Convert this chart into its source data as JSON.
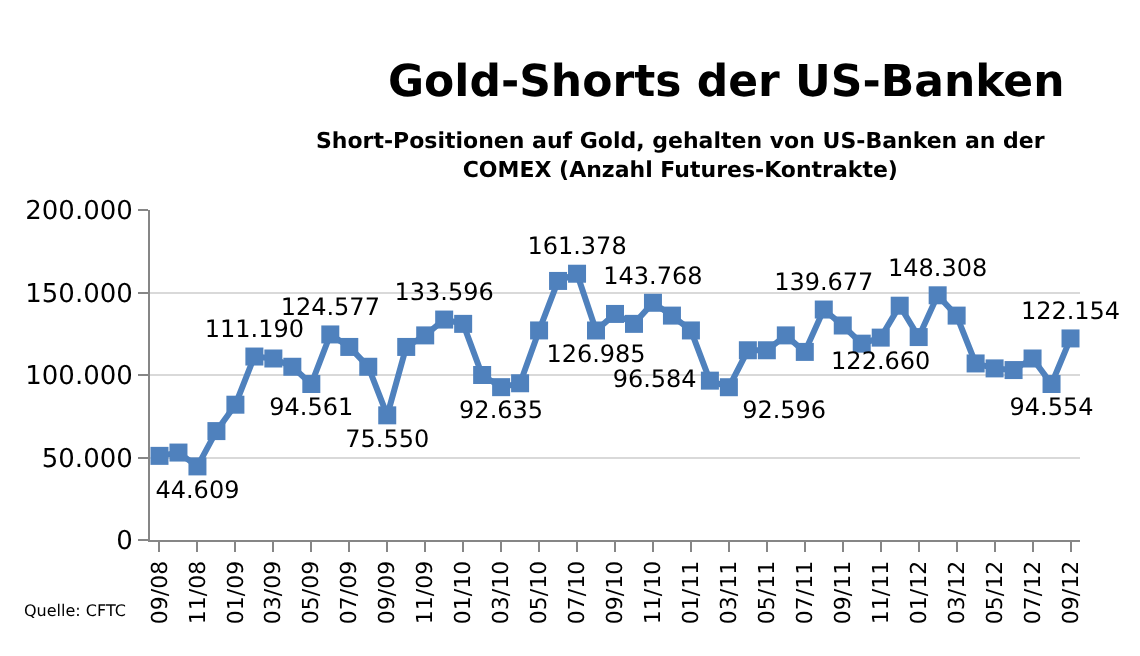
{
  "chart_data": {
    "type": "line",
    "title": "Gold-Shorts der US-Banken",
    "subtitle": "Short-Positionen auf Gold, gehalten von US-Banken an der\nCOMEX (Anzahl Futures-Kontrakte)",
    "categories": [
      "09/08",
      null,
      "11/08",
      null,
      "01/09",
      null,
      "03/09",
      null,
      "05/09",
      null,
      "07/09",
      null,
      "09/09",
      null,
      "11/09",
      null,
      "01/10",
      null,
      "03/10",
      null,
      "05/10",
      null,
      "07/10",
      null,
      "09/10",
      null,
      "11/10",
      null,
      "01/11",
      null,
      "03/11",
      null,
      "05/11",
      null,
      "07/11",
      null,
      "09/11",
      null,
      "11/11",
      null,
      "01/12",
      null,
      "03/12",
      null,
      "05/12",
      null,
      "07/12",
      null,
      "09/12"
    ],
    "series": [
      {
        "color": "#4f81bd",
        "values": [
          51000,
          53000,
          44609,
          66000,
          82000,
          111190,
          110000,
          105000,
          94561,
          124577,
          117000,
          105000,
          75550,
          117000,
          124000,
          133596,
          131000,
          100000,
          92635,
          95000,
          127000,
          157000,
          161378,
          126985,
          137000,
          131000,
          143768,
          136000,
          127000,
          96584,
          92596,
          115000,
          115000,
          124000,
          114000,
          139677,
          130000,
          119000,
          122660,
          142000,
          123000,
          148308,
          136000,
          107000,
          104000,
          103000,
          110000,
          94554,
          122154
        ],
        "value_labels": [
          null,
          null,
          "44.609",
          null,
          null,
          "111.190",
          null,
          null,
          "94.561",
          "124.577",
          null,
          null,
          "75.550",
          null,
          null,
          "133.596",
          null,
          null,
          "92.635",
          null,
          null,
          null,
          "161.378",
          "126.985",
          null,
          null,
          "143.768",
          null,
          null,
          "96.584",
          "92.596",
          null,
          null,
          null,
          null,
          "139.677",
          null,
          null,
          "122.660",
          null,
          null,
          "148.308",
          null,
          null,
          null,
          null,
          null,
          "94.554",
          "122.154"
        ]
      }
    ],
    "ylim": [
      0,
      200000
    ],
    "yticks": [
      0,
      {
        "value": 50000,
        "label": "50.000"
      },
      {
        "value": 100000,
        "label": "100.000"
      },
      {
        "value": 150000,
        "label": "150.000"
      },
      {
        "value": 200000,
        "label": "200.000"
      }
    ],
    "grid": "y",
    "marker": "square",
    "line_style": "solid",
    "annotations": [
      "Quelle: CFTC"
    ]
  }
}
